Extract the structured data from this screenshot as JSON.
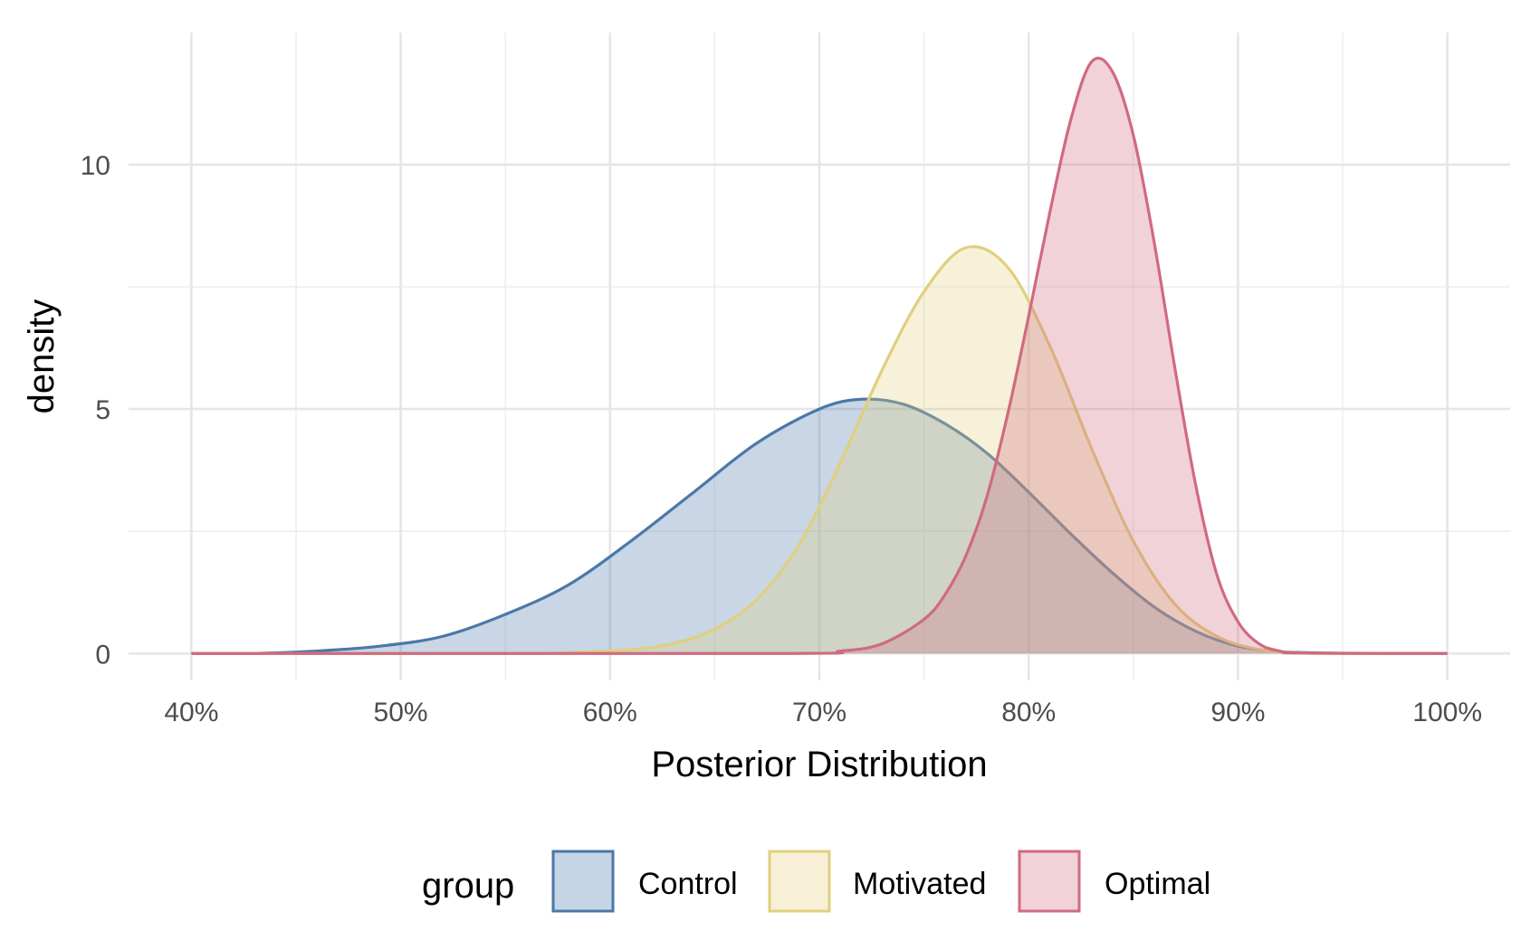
{
  "chart_data": {
    "type": "area",
    "xlabel": "Posterior Distribution",
    "ylabel": "density",
    "xlim": [
      0.37,
      1.03
    ],
    "ylim": [
      -0.55,
      12.7
    ],
    "x_ticks": [
      0.4,
      0.5,
      0.6,
      0.7,
      0.8,
      0.9,
      1.0
    ],
    "x_tick_labels": [
      "40%",
      "50%",
      "60%",
      "70%",
      "80%",
      "90%",
      "100%"
    ],
    "y_ticks": [
      0,
      5,
      10
    ],
    "y_tick_labels": [
      "0",
      "5",
      "10"
    ],
    "y_minor_ticks": [
      2.5,
      7.5
    ],
    "x_minor_ticks": [
      0.45,
      0.55,
      0.65,
      0.75,
      0.85,
      0.95
    ],
    "grid": true,
    "legend": {
      "title": "group",
      "position": "bottom"
    },
    "series": [
      {
        "name": "Control",
        "color": "#4a78a8",
        "fill": "#c6d5e5",
        "x": [
          0.4,
          0.43,
          0.46,
          0.49,
          0.52,
          0.55,
          0.58,
          0.61,
          0.64,
          0.67,
          0.7,
          0.72,
          0.74,
          0.76,
          0.78,
          0.8,
          0.82,
          0.84,
          0.86,
          0.88,
          0.9,
          0.92,
          0.94,
          0.96,
          0.98,
          1.0
        ],
        "values": [
          0.0,
          0.0,
          0.05,
          0.15,
          0.35,
          0.8,
          1.4,
          2.3,
          3.3,
          4.3,
          5.0,
          5.2,
          5.1,
          4.7,
          4.1,
          3.3,
          2.45,
          1.65,
          0.95,
          0.45,
          0.15,
          0.04,
          0.01,
          0.0,
          0.0,
          0.0
        ]
      },
      {
        "name": "Motivated",
        "color": "#e0cf7e",
        "fill": "#f7f0d6",
        "x": [
          0.4,
          0.55,
          0.58,
          0.61,
          0.63,
          0.65,
          0.67,
          0.69,
          0.71,
          0.73,
          0.75,
          0.77,
          0.79,
          0.81,
          0.83,
          0.85,
          0.87,
          0.89,
          0.91,
          0.93,
          0.95,
          1.0
        ],
        "values": [
          0.0,
          0.0,
          0.02,
          0.08,
          0.2,
          0.5,
          1.1,
          2.2,
          3.9,
          5.8,
          7.4,
          8.3,
          7.9,
          6.3,
          4.2,
          2.3,
          1.0,
          0.35,
          0.08,
          0.01,
          0.0,
          0.0
        ]
      },
      {
        "name": "Optimal",
        "color": "#d06a80",
        "fill": "#f1d2d9",
        "x": [
          0.4,
          0.68,
          0.71,
          0.73,
          0.75,
          0.76,
          0.77,
          0.78,
          0.79,
          0.8,
          0.81,
          0.82,
          0.83,
          0.84,
          0.85,
          0.86,
          0.87,
          0.88,
          0.89,
          0.9,
          0.91,
          0.92,
          0.93,
          1.0
        ],
        "values": [
          0.0,
          0.0,
          0.05,
          0.2,
          0.7,
          1.2,
          2.0,
          3.2,
          4.9,
          6.9,
          9.0,
          10.9,
          12.1,
          11.9,
          10.6,
          8.4,
          5.8,
          3.4,
          1.6,
          0.65,
          0.2,
          0.05,
          0.01,
          0.0
        ]
      }
    ]
  }
}
